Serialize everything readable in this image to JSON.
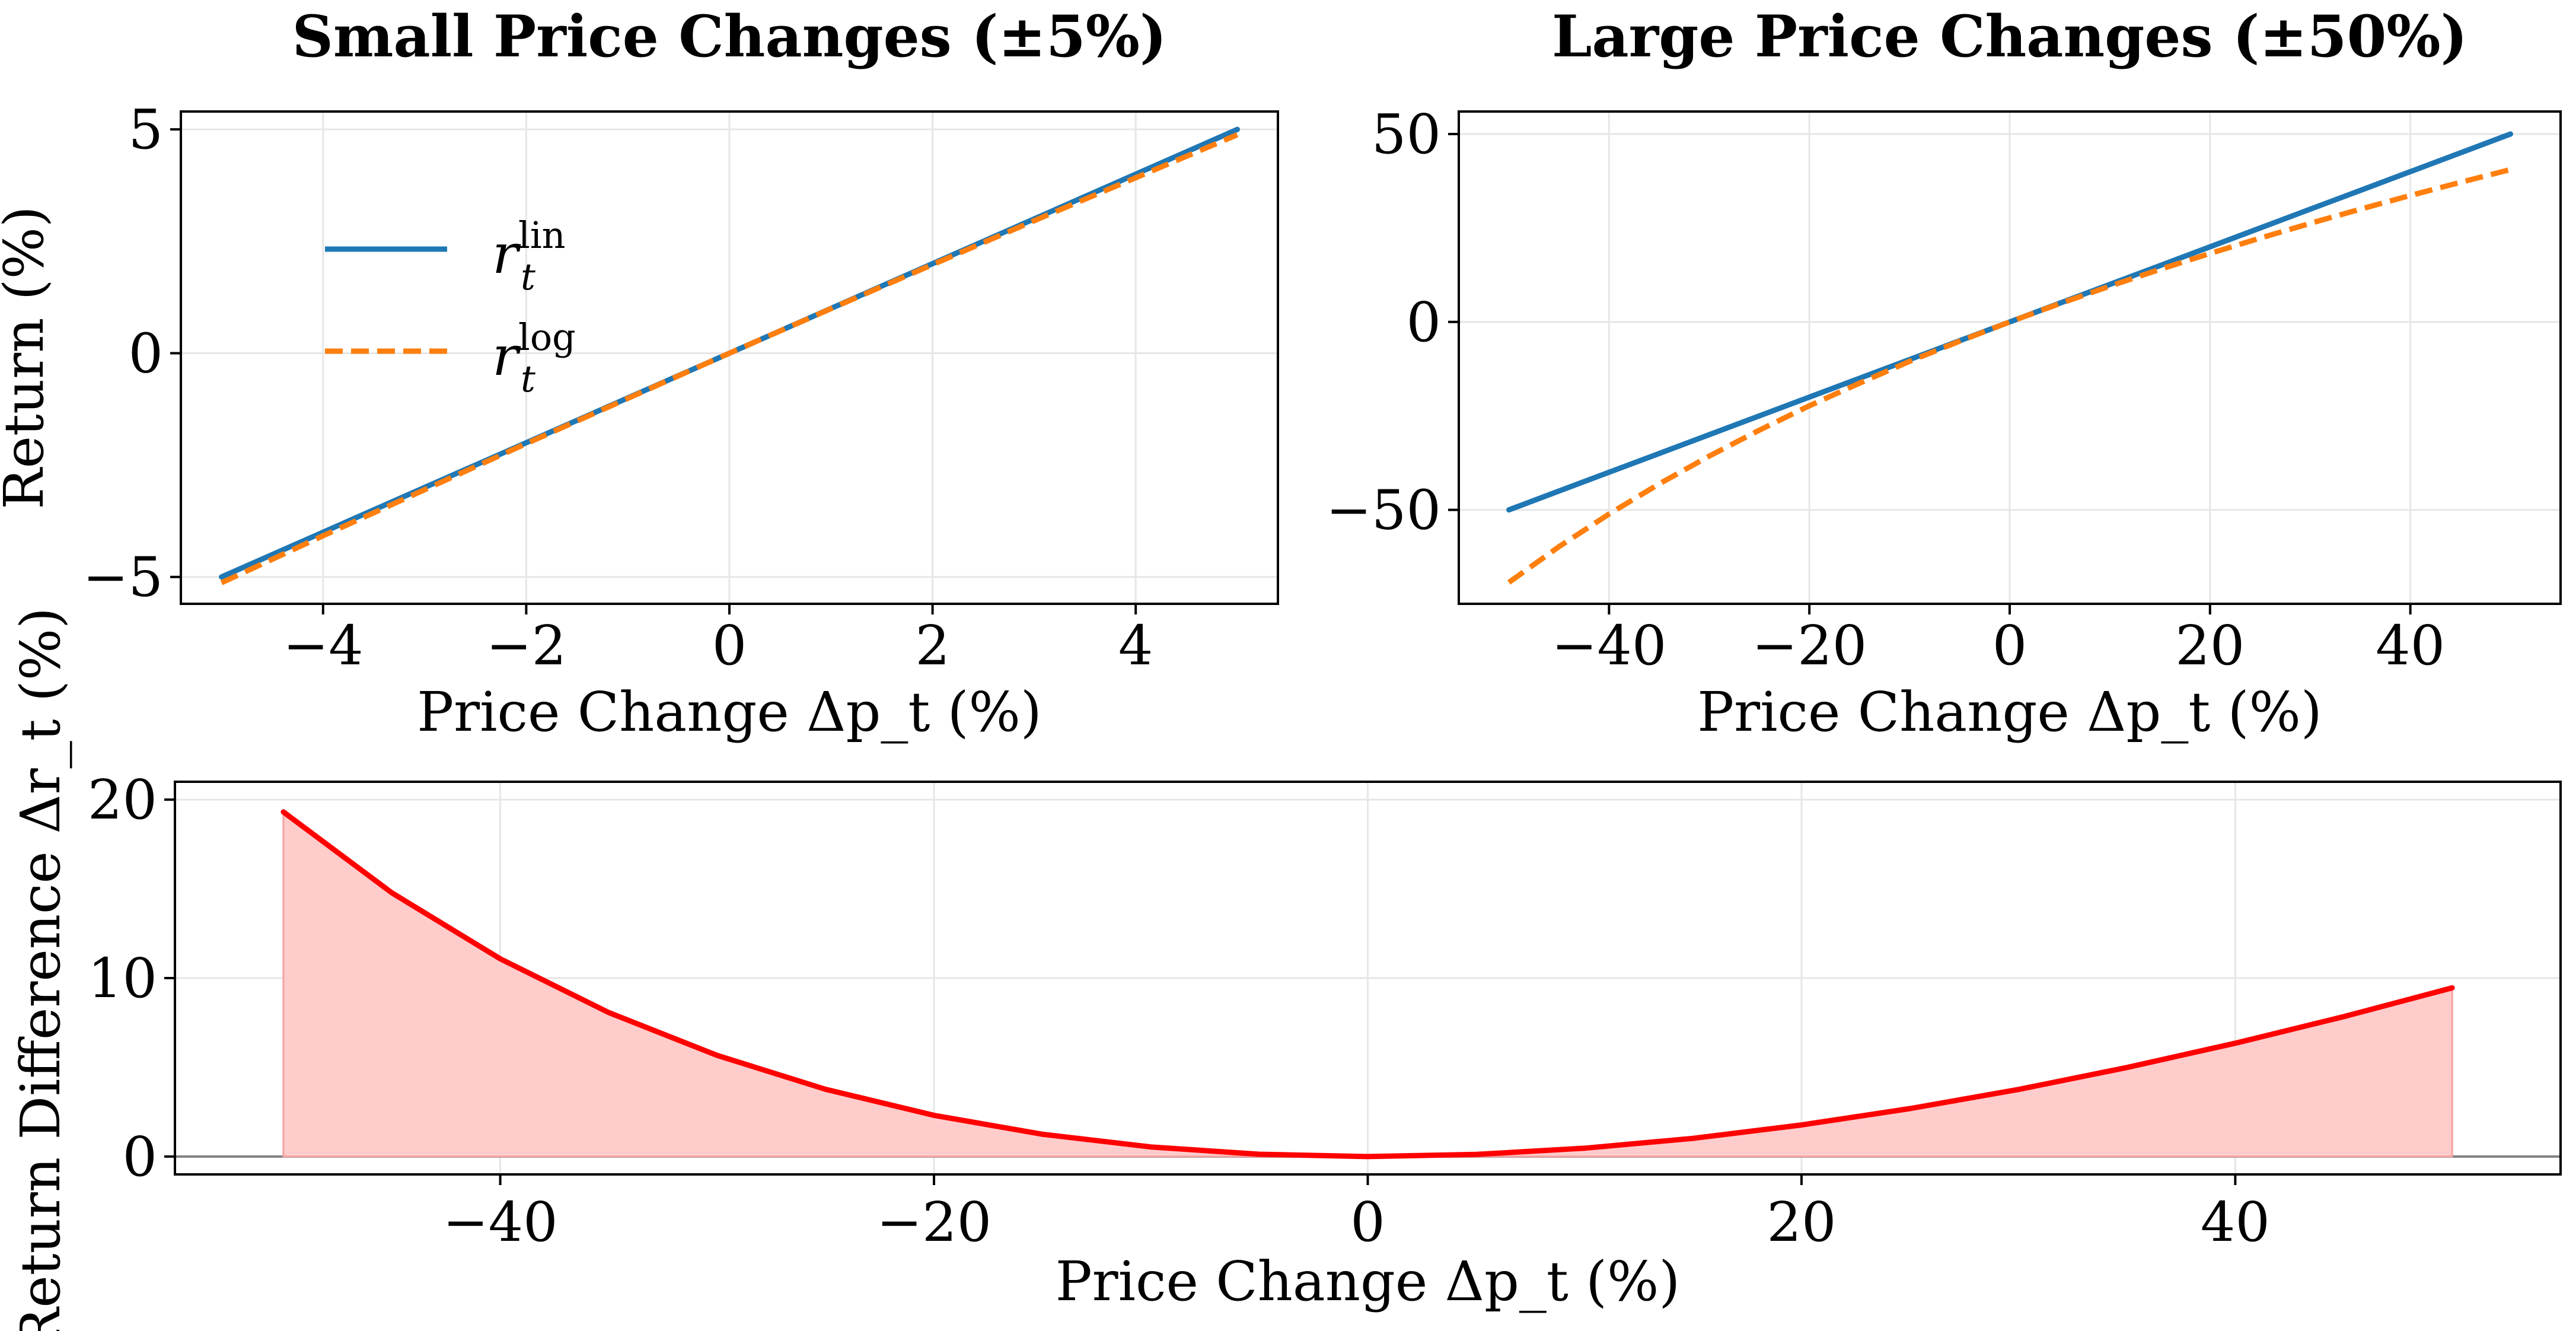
{
  "chart_data": [
    {
      "type": "line",
      "title": "Small Price Changes (±5%)",
      "xlabel": "Price Change Δp_t (%)",
      "ylabel": "Return (%)",
      "xlim": [
        -5.4,
        5.4
      ],
      "ylim": [
        -5.6,
        5.4
      ],
      "xticks": [
        -4,
        -2,
        0,
        2,
        4
      ],
      "yticks": [
        -5,
        0,
        5
      ],
      "xtick_labels": [
        "−4",
        "−2",
        "0",
        "2",
        "4"
      ],
      "ytick_labels": [
        "−5",
        "0",
        "5"
      ],
      "grid": true,
      "legend_position": "upper-left",
      "x": [
        -5,
        -4,
        -3,
        -2,
        -1,
        0,
        1,
        2,
        3,
        4,
        5
      ],
      "series": [
        {
          "name": "r_t^lin",
          "legend_base": "r",
          "legend_sub": "t",
          "legend_sup": "lin",
          "style": "solid",
          "color": "#1f77b4",
          "values": [
            -5,
            -4,
            -3,
            -2,
            -1,
            0,
            1,
            2,
            3,
            4,
            5
          ]
        },
        {
          "name": "r_t^log",
          "legend_base": "r",
          "legend_sub": "t",
          "legend_sup": "log",
          "style": "dashed",
          "color": "#ff7f0e",
          "values": [
            -5.13,
            -4.08,
            -3.05,
            -2.02,
            -1.01,
            0,
            0.995,
            1.98,
            2.96,
            3.92,
            4.88
          ]
        }
      ]
    },
    {
      "type": "line",
      "title": "Large Price Changes (±50%)",
      "xlabel": "Price Change Δp_t (%)",
      "ylabel": "",
      "xlim": [
        -55,
        55
      ],
      "ylim": [
        -75,
        56
      ],
      "xticks": [
        -40,
        -20,
        0,
        20,
        40
      ],
      "yticks": [
        -50,
        0,
        50
      ],
      "xtick_labels": [
        "−40",
        "−20",
        "0",
        "20",
        "40"
      ],
      "ytick_labels": [
        "−50",
        "0",
        "50"
      ],
      "grid": true,
      "x": [
        -50,
        -45,
        -40,
        -35,
        -30,
        -25,
        -20,
        -15,
        -10,
        -5,
        0,
        5,
        10,
        15,
        20,
        25,
        30,
        35,
        40,
        45,
        50
      ],
      "series": [
        {
          "name": "r_t^lin",
          "style": "solid",
          "color": "#1f77b4",
          "values": [
            -50,
            -45,
            -40,
            -35,
            -30,
            -25,
            -20,
            -15,
            -10,
            -5,
            0,
            5,
            10,
            15,
            20,
            25,
            30,
            35,
            40,
            45,
            50
          ]
        },
        {
          "name": "r_t^log",
          "style": "dashed",
          "color": "#ff7f0e",
          "values": [
            -69.3,
            -59.8,
            -51.1,
            -43.1,
            -35.7,
            -28.8,
            -22.3,
            -16.3,
            -10.5,
            -5.13,
            0,
            4.88,
            9.53,
            13.98,
            18.23,
            22.31,
            26.24,
            30.01,
            33.65,
            37.16,
            40.55
          ]
        }
      ]
    },
    {
      "type": "area",
      "title": "",
      "xlabel": "Price Change Δp_t (%)",
      "ylabel": "Return Difference Δr_t (%)",
      "xlim": [
        -55,
        55
      ],
      "ylim": [
        -1,
        21
      ],
      "xticks": [
        -40,
        -20,
        0,
        20,
        40
      ],
      "yticks": [
        0,
        10,
        20
      ],
      "xtick_labels": [
        "−40",
        "−20",
        "0",
        "20",
        "40"
      ],
      "ytick_labels": [
        "0",
        "10",
        "20"
      ],
      "grid": true,
      "zero_line": true,
      "x": [
        -50,
        -45,
        -40,
        -35,
        -30,
        -25,
        -20,
        -15,
        -10,
        -5,
        0,
        5,
        10,
        15,
        20,
        25,
        30,
        35,
        40,
        45,
        50
      ],
      "series": [
        {
          "name": "Δr_t",
          "color": "#ff0000",
          "fill": "#ffcccc",
          "values": [
            19.31,
            14.78,
            11.08,
            8.07,
            5.67,
            3.77,
            2.31,
            1.25,
            0.54,
            0.13,
            0,
            0.12,
            0.47,
            1.02,
            1.77,
            2.69,
            3.76,
            4.99,
            6.35,
            7.84,
            9.45
          ]
        }
      ]
    }
  ]
}
